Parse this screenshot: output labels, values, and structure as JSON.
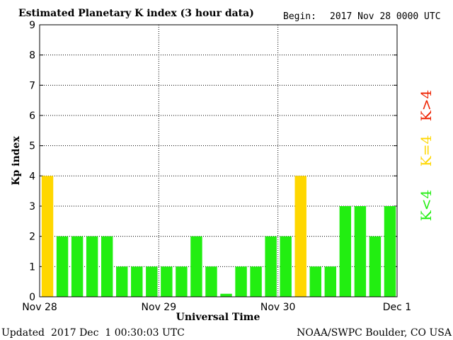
{
  "header": {
    "title": "Estimated Planetary K index (3 hour data)",
    "begin_label": "Begin:",
    "begin_value": "2017 Nov 28 0000 UTC"
  },
  "footer": {
    "updated_label": "Updated",
    "updated_value": "2017 Dec  1 00:30:03 UTC",
    "credit": "NOAA/SWPC Boulder, CO USA"
  },
  "legend": {
    "low": "K<4",
    "mid": "K=4",
    "high": "K>4"
  },
  "colors": {
    "low": "#22ee11",
    "mid": "#ffd700",
    "high": "#ee2200",
    "grid": "#000000"
  },
  "chart_data": {
    "type": "bar",
    "title": "Estimated Planetary K index (3 hour data)",
    "xlabel": "Universal Time",
    "ylabel": "Kp index",
    "ylim": [
      0,
      9
    ],
    "yticks": [
      "0",
      "1",
      "2",
      "3",
      "4",
      "5",
      "6",
      "7",
      "8",
      "9"
    ],
    "xticks": [
      "Nov 28",
      "Nov 29",
      "Nov 30",
      "Dec 1"
    ],
    "values": [
      4,
      2,
      2,
      2,
      2,
      1,
      1,
      1,
      1,
      1,
      2,
      1,
      0.1,
      1,
      1,
      2,
      2,
      4,
      1,
      1,
      3,
      3,
      2,
      3
    ],
    "grid": true
  }
}
